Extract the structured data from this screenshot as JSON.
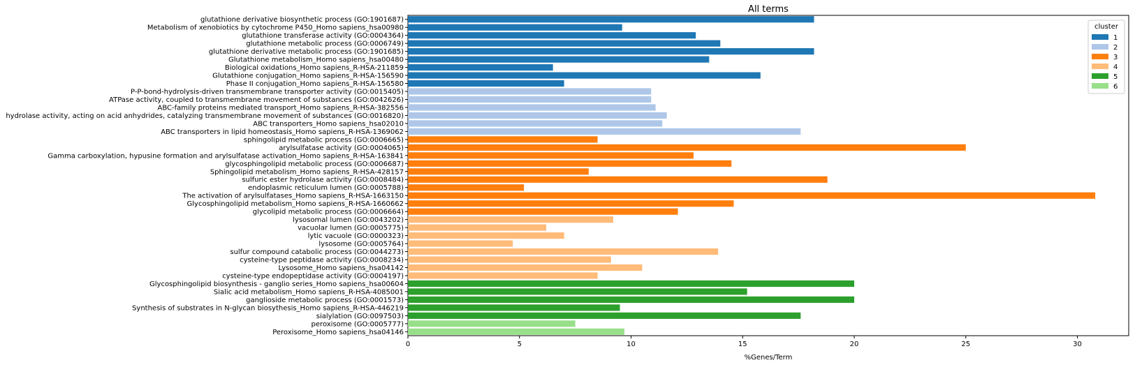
{
  "chart_data": {
    "type": "bar",
    "orientation": "horizontal",
    "title": "All terms",
    "xlabel": "%Genes/Term",
    "ylabel": "",
    "xlim": [
      0,
      32.3
    ],
    "xticks": [
      0,
      5,
      10,
      15,
      20,
      25,
      30
    ],
    "grid": false,
    "legend": {
      "title": "cluster",
      "placement": "top-right",
      "entries": [
        {
          "label": "1",
          "color": "#1f77b4"
        },
        {
          "label": "2",
          "color": "#aec7e8"
        },
        {
          "label": "3",
          "color": "#ff7f0e"
        },
        {
          "label": "4",
          "color": "#ffbb78"
        },
        {
          "label": "5",
          "color": "#2ca02c"
        },
        {
          "label": "6",
          "color": "#98df8a"
        }
      ]
    },
    "categories": [
      "glutathione derivative biosynthetic process (GO:1901687)",
      "Metabolism of xenobiotics by cytochrome P450_Homo sapiens_hsa00980",
      "glutathione transferase activity (GO:0004364)",
      "glutathione metabolic process (GO:0006749)",
      "glutathione derivative metabolic process (GO:1901685)",
      "Glutathione metabolism_Homo sapiens_hsa00480",
      "Biological oxidations_Homo sapiens_R-HSA-211859",
      "Glutathione conjugation_Homo sapiens_R-HSA-156590",
      "Phase II conjugation_Homo sapiens_R-HSA-156580",
      "P-P-bond-hydrolysis-driven transmembrane transporter activity (GO:0015405)",
      "ATPase activity, coupled to transmembrane movement of substances (GO:0042626)",
      "ABC-family proteins mediated transport_Homo sapiens_R-HSA-382556",
      "hydrolase activity, acting on acid anhydrides, catalyzing transmembrane movement of substances (GO:0016820)",
      "ABC transporters_Homo sapiens_hsa02010",
      "ABC transporters in lipid homeostasis_Homo sapiens_R-HSA-1369062",
      "sphingolipid metabolic process (GO:0006665)",
      "arylsulfatase activity (GO:0004065)",
      "Gamma carboxylation, hypusine formation and arylsulfatase activation_Homo sapiens_R-HSA-163841",
      "glycosphingolipid metabolic process (GO:0006687)",
      "Sphingolipid metabolism_Homo sapiens_R-HSA-428157",
      "sulfuric ester hydrolase activity (GO:0008484)",
      "endoplasmic reticulum lumen (GO:0005788)",
      "The activation of arylsulfatases_Homo sapiens_R-HSA-1663150",
      "Glycosphingolipid metabolism_Homo sapiens_R-HSA-1660662",
      "glycolipid metabolic process (GO:0006664)",
      "lysosomal lumen (GO:0043202)",
      "vacuolar lumen (GO:0005775)",
      "lytic vacuole (GO:0000323)",
      "lysosome (GO:0005764)",
      "sulfur compound catabolic process (GO:0044273)",
      "cysteine-type peptidase activity (GO:0008234)",
      "Lysosome_Homo sapiens_hsa04142",
      "cysteine-type endopeptidase activity (GO:0004197)",
      "Glycosphingolipid biosynthesis - ganglio series_Homo sapiens_hsa00604",
      "Sialic acid metabolism_Homo sapiens_R-HSA-4085001",
      "ganglioside metabolic process (GO:0001573)",
      "Synthesis of substrates in N-glycan biosythesis_Homo sapiens_R-HSA-446219",
      "sialylation (GO:0097503)",
      "peroxisome (GO:0005777)",
      "Peroxisome_Homo sapiens_hsa04146"
    ],
    "values": [
      18.2,
      9.6,
      12.9,
      14.0,
      18.2,
      13.5,
      6.5,
      15.8,
      7.0,
      10.9,
      10.9,
      11.1,
      11.6,
      11.4,
      17.6,
      8.5,
      25.0,
      12.8,
      14.5,
      8.1,
      18.8,
      5.2,
      30.8,
      14.6,
      12.1,
      9.2,
      6.2,
      7.0,
      4.7,
      13.9,
      9.1,
      10.5,
      8.5,
      20.0,
      15.2,
      20.0,
      9.5,
      17.6,
      7.5,
      9.7
    ],
    "clusters": [
      "1",
      "1",
      "1",
      "1",
      "1",
      "1",
      "1",
      "1",
      "1",
      "2",
      "2",
      "2",
      "2",
      "2",
      "2",
      "3",
      "3",
      "3",
      "3",
      "3",
      "3",
      "3",
      "3",
      "3",
      "3",
      "4",
      "4",
      "4",
      "4",
      "4",
      "4",
      "4",
      "4",
      "5",
      "5",
      "5",
      "5",
      "5",
      "6",
      "6"
    ]
  }
}
